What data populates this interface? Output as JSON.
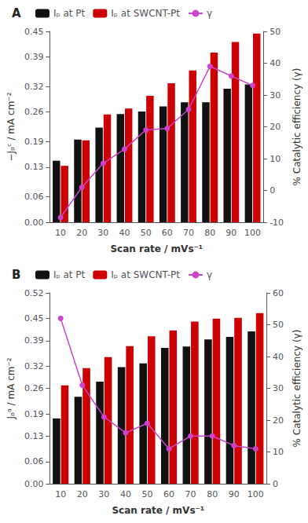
{
  "chart_data": [
    {
      "type": "bar",
      "title": "A",
      "categories": [
        10,
        20,
        30,
        40,
        50,
        60,
        70,
        80,
        90,
        100
      ],
      "series": [
        {
          "name": "Iₚ at Pt",
          "color": "#111111",
          "values": [
            0.145,
            0.195,
            0.223,
            0.255,
            0.261,
            0.273,
            0.283,
            0.283,
            0.315,
            0.325
          ]
        },
        {
          "name": "Iₚ at SWCNT-Pt",
          "color": "#cc0000",
          "values": [
            0.133,
            0.193,
            0.254,
            0.268,
            0.298,
            0.328,
            0.358,
            0.4,
            0.425,
            0.445
          ]
        },
        {
          "name": "γ",
          "type": "line",
          "axis": "y2",
          "color": "#cc44cc",
          "marker": "circle",
          "line_style": "solid",
          "values": [
            -8.5,
            1.0,
            8.5,
            13.0,
            19.0,
            19.5,
            25.5,
            39.0,
            36.0,
            33.0
          ]
        }
      ],
      "xlabel": "Scan rate / mVs⁻¹",
      "ylabel": "−Jₚᶜ / mA cm⁻²",
      "y2label": "% Catalytic efficiency (γ)",
      "ylim": [
        0.0,
        0.45
      ],
      "yticks": [
        {
          "value": 0,
          "label": "0.00"
        },
        0.06,
        0.13,
        0.19,
        0.26,
        0.32,
        0.39,
        0.45
      ],
      "y2lim": [
        -10,
        50
      ],
      "y2ticks": [
        -10,
        0,
        10,
        20,
        30,
        40,
        50
      ],
      "grid": false,
      "legend": "upper left"
    },
    {
      "type": "bar",
      "title": "B",
      "categories": [
        10,
        20,
        30,
        40,
        50,
        60,
        70,
        80,
        90,
        100
      ],
      "series": [
        {
          "name": "Iₚ at Pt",
          "color": "#111111",
          "values": [
            0.178,
            0.237,
            0.278,
            0.318,
            0.328,
            0.37,
            0.374,
            0.393,
            0.4,
            0.415
          ]
        },
        {
          "name": "Iₚ at SWCNT-Pt",
          "color": "#cc0000",
          "values": [
            0.268,
            0.315,
            0.345,
            0.375,
            0.402,
            0.418,
            0.442,
            0.45,
            0.452,
            0.465
          ]
        },
        {
          "name": "γ",
          "type": "line",
          "axis": "y2",
          "color": "#cc44cc",
          "marker": "circle",
          "line_style": "solid",
          "values": [
            52.0,
            31.0,
            21.0,
            16.0,
            19.0,
            11.0,
            15.0,
            15.0,
            12.0,
            11.0
          ]
        }
      ],
      "xlabel": "Scan rate / mVs⁻¹",
      "ylabel": "Jₚᵃ / mA cm⁻²",
      "y2label": "% Catalytic efficiency (γ)",
      "ylim": [
        0.0,
        0.52
      ],
      "yticks": [
        {
          "value": 0,
          "label": "0.00"
        },
        0.06,
        0.13,
        0.19,
        0.26,
        0.32,
        0.39,
        0.45,
        0.52
      ],
      "y2lim": [
        0,
        60
      ],
      "y2ticks": [
        0,
        10,
        20,
        30,
        40,
        50,
        60
      ],
      "grid": false,
      "legend": "upper left"
    }
  ]
}
